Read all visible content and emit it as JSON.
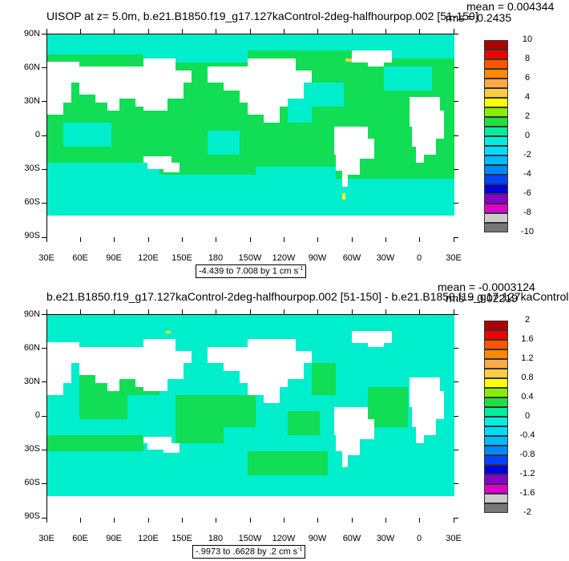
{
  "top": {
    "title": "UISOP at z=   5.0m, b.e21.B1850.f19_g17.127kaControl-2deg-halfhourpop.002 [51-150]",
    "mean": "mean = 0.004344",
    "rms": "rms = 0.2435",
    "range_text": "-4.439 to 7.008 by 1 cm s",
    "range_unit_sup": "-1",
    "colorbar_labels": [
      "10",
      "8",
      "6",
      "4",
      "2",
      "0",
      "-2",
      "-4",
      "-6",
      "-8",
      "-10"
    ]
  },
  "bottom": {
    "title": "b.e21.B1850.f19_g17.127kaControl-2deg-halfhourpop.002 [51-150] - b.e21.B1850.f19_g17.127kaControl",
    "mean": "mean = -0.0003124",
    "rms": "rms = 0.02219",
    "range_text": "-.9973 to .6628 by .2 cm s",
    "range_unit_sup": "-1",
    "colorbar_labels": [
      "2",
      "1.6",
      "1.2",
      "0.8",
      "0.4",
      "0",
      "-0.4",
      "-0.8",
      "-1.2",
      "-1.6",
      "-2"
    ]
  },
  "axes": {
    "y_ticks": [
      "90N",
      "60N",
      "30N",
      "0",
      "30S",
      "60S",
      "90S"
    ],
    "x_ticks": [
      "30E",
      "60E",
      "90E",
      "120E",
      "150E",
      "180",
      "150W",
      "120W",
      "90W",
      "60W",
      "30W",
      "0",
      "30E"
    ]
  },
  "colors": {
    "ocean_main": "#11dd55",
    "ocean_light": "#00eecc",
    "land": "#ffffff",
    "colorbar": [
      "#aa0000",
      "#ee0000",
      "#ff5500",
      "#ff8800",
      "#ffaa44",
      "#ffcc44",
      "#ffff00",
      "#88ee00",
      "#22dd44",
      "#00ee99",
      "#00eedd",
      "#00ddff",
      "#00bbff",
      "#0088ff",
      "#0044ff",
      "#0000dd",
      "#8800cc",
      "#dd00cc",
      "#cccccc",
      "#777777"
    ]
  }
}
